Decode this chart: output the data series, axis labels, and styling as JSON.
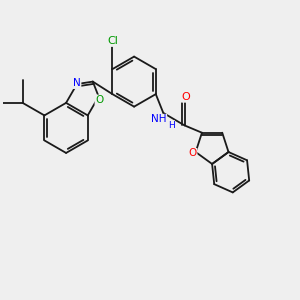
{
  "background_color": "#efefef",
  "bond_color": "#1a1a1a",
  "bond_width": 1.3,
  "atom_colors": {
    "N": "#0000ff",
    "O": "#ff0000",
    "O_oxazole": "#009900",
    "Cl": "#009900",
    "NH": "#0000ff"
  },
  "figsize": [
    3.0,
    3.0
  ],
  "dpi": 100
}
